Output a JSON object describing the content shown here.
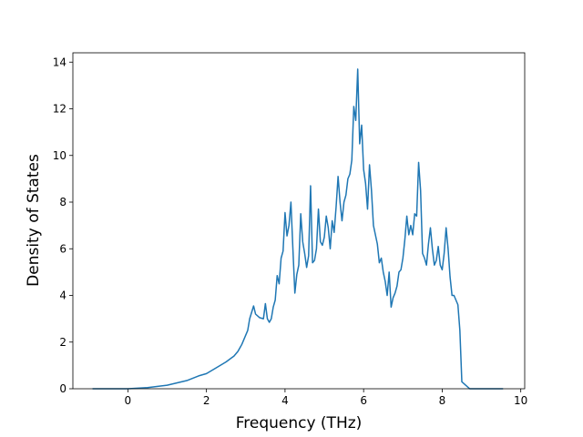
{
  "chart_data": {
    "type": "line",
    "xlabel": "Frequency (THz)",
    "ylabel": "Density of States",
    "xlim": [
      -1.4,
      10.1
    ],
    "ylim": [
      0,
      14.4
    ],
    "xticks": [
      0,
      2,
      4,
      6,
      8,
      10
    ],
    "yticks": [
      0,
      2,
      4,
      6,
      8,
      10,
      12,
      14
    ],
    "grid": false,
    "series": [
      {
        "color": "#1f77b4",
        "x": [
          -0.9,
          0.0,
          0.5,
          1.0,
          1.5,
          1.8,
          2.0,
          2.2,
          2.5,
          2.7,
          2.8,
          2.9,
          3.0,
          3.05,
          3.1,
          3.2,
          3.25,
          3.35,
          3.45,
          3.5,
          3.55,
          3.6,
          3.65,
          3.7,
          3.75,
          3.8,
          3.85,
          3.9,
          3.95,
          4.0,
          4.05,
          4.1,
          4.15,
          4.2,
          4.25,
          4.3,
          4.35,
          4.4,
          4.45,
          4.5,
          4.55,
          4.6,
          4.65,
          4.7,
          4.75,
          4.8,
          4.85,
          4.9,
          4.95,
          5.0,
          5.05,
          5.1,
          5.15,
          5.2,
          5.25,
          5.3,
          5.35,
          5.4,
          5.45,
          5.5,
          5.55,
          5.6,
          5.65,
          5.7,
          5.75,
          5.8,
          5.85,
          5.9,
          5.95,
          6.0,
          6.05,
          6.1,
          6.15,
          6.2,
          6.25,
          6.3,
          6.35,
          6.4,
          6.45,
          6.5,
          6.55,
          6.6,
          6.65,
          6.7,
          6.75,
          6.8,
          6.85,
          6.9,
          6.95,
          7.0,
          7.05,
          7.1,
          7.15,
          7.2,
          7.25,
          7.3,
          7.35,
          7.4,
          7.45,
          7.5,
          7.55,
          7.6,
          7.65,
          7.7,
          7.75,
          7.8,
          7.85,
          7.9,
          7.95,
          8.0,
          8.05,
          8.1,
          8.15,
          8.2,
          8.25,
          8.3,
          8.35,
          8.4,
          8.45,
          8.5,
          8.6,
          8.7,
          9.55
        ],
        "values": [
          0,
          0,
          0.05,
          0.15,
          0.35,
          0.55,
          0.65,
          0.85,
          1.15,
          1.4,
          1.6,
          1.9,
          2.3,
          2.5,
          3.0,
          3.55,
          3.2,
          3.05,
          3.0,
          3.65,
          3.0,
          2.85,
          3.0,
          3.5,
          3.8,
          4.85,
          4.5,
          5.6,
          5.9,
          7.55,
          6.55,
          7.0,
          8.0,
          6.0,
          4.1,
          4.9,
          5.3,
          7.5,
          6.3,
          5.8,
          5.2,
          5.7,
          8.7,
          5.4,
          5.5,
          6.0,
          7.7,
          6.3,
          6.15,
          6.5,
          7.4,
          6.9,
          6.0,
          7.2,
          6.7,
          7.8,
          9.1,
          8.0,
          7.2,
          8.0,
          8.3,
          9.0,
          9.2,
          9.8,
          12.1,
          11.5,
          13.7,
          10.5,
          11.3,
          9.4,
          8.8,
          7.7,
          9.6,
          8.5,
          7.0,
          6.6,
          6.2,
          5.4,
          5.6,
          5.0,
          4.6,
          4.0,
          5.0,
          3.5,
          3.9,
          4.1,
          4.4,
          5.0,
          5.1,
          5.6,
          6.4,
          7.4,
          6.6,
          7.0,
          6.6,
          7.5,
          7.4,
          9.7,
          8.5,
          5.8,
          5.6,
          5.3,
          6.2,
          6.9,
          6.0,
          5.3,
          5.5,
          6.1,
          5.3,
          5.1,
          5.8,
          6.9,
          6.0,
          4.8,
          4.0,
          4.0,
          3.8,
          3.6,
          2.5,
          0.3,
          0.15,
          0,
          0
        ]
      }
    ]
  }
}
